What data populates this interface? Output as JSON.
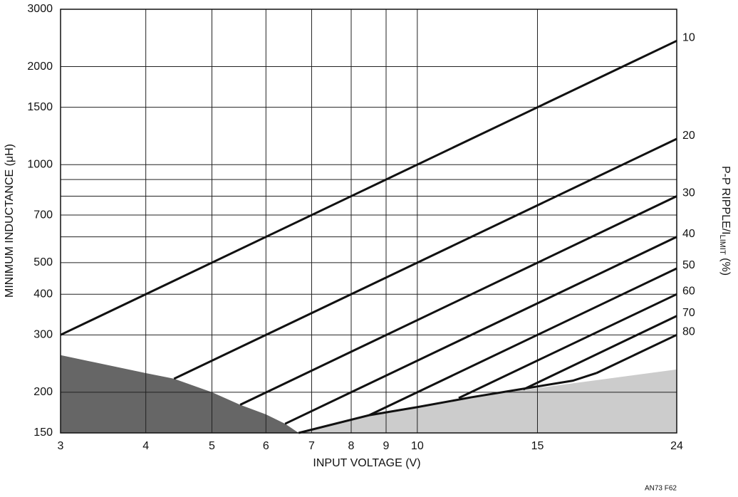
{
  "chart_data": {
    "type": "line",
    "x_label": "INPUT VOLTAGE (V)",
    "y_label": "MINIMUM INDUCTANCE (μH)",
    "y2_label": [
      "P-P RIPPLE/I",
      "LIMIT",
      " (%)"
    ],
    "footnote": "AN73 F62",
    "xscale": "log",
    "yscale": "log",
    "grid": true,
    "xlim": [
      3,
      24
    ],
    "xticks": [
      3,
      4,
      5,
      6,
      7,
      8,
      9,
      10,
      15,
      24
    ],
    "ylim": [
      150,
      3000
    ],
    "yticks": [
      150,
      200,
      300,
      400,
      500,
      700,
      1000,
      1500,
      2000,
      3000
    ],
    "ygrid": [
      600,
      800,
      900
    ],
    "color": "#111111",
    "series": [
      {
        "name": "10",
        "x": [
          3,
          24
        ],
        "values": [
          300,
          2400
        ]
      },
      {
        "name": "20",
        "x": [
          4.4,
          24
        ],
        "values": [
          220,
          1200
        ]
      },
      {
        "name": "30",
        "x": [
          5.5,
          24
        ],
        "values": [
          183,
          800
        ]
      },
      {
        "name": "40",
        "x": [
          6.4,
          24
        ],
        "values": [
          160,
          600
        ]
      },
      {
        "name": "50",
        "x": [
          8.5,
          24
        ],
        "values": [
          170,
          480
        ]
      },
      {
        "name": "60",
        "x": [
          11.5,
          24
        ],
        "values": [
          192,
          400
        ]
      },
      {
        "name": "70",
        "x": [
          14.3,
          24
        ],
        "values": [
          204,
          343
        ]
      },
      {
        "name": "80",
        "x": [
          18.3,
          24
        ],
        "values": [
          229,
          300
        ]
      }
    ],
    "boundary": {
      "x": [
        6.7,
        8.5,
        10,
        12,
        14.3,
        16.9,
        18.3
      ],
      "values": [
        150,
        170,
        180,
        193,
        205,
        217,
        229
      ]
    },
    "regions": [
      {
        "color": "#666666",
        "x": [
          3,
          4,
          4.4,
          5,
          5.5,
          6,
          6.4,
          6.7
        ],
        "values": [
          260,
          229,
          220,
          200,
          183,
          171,
          160,
          150
        ]
      },
      {
        "color": "#cccccc",
        "x": [
          6.7,
          8.5,
          10,
          12,
          15,
          24
        ],
        "values": [
          150,
          170,
          180,
          193,
          206,
          235
        ]
      }
    ]
  }
}
